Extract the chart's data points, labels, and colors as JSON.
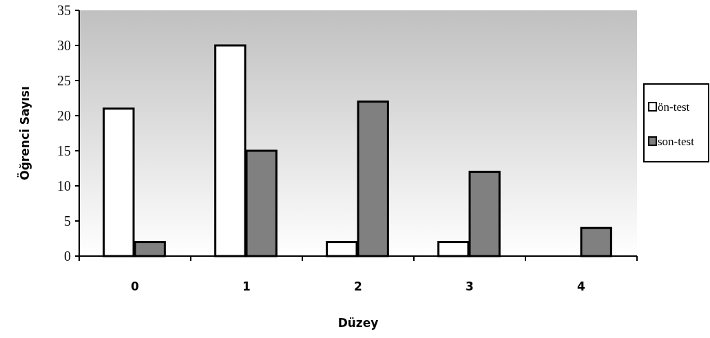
{
  "chart_data": {
    "type": "bar",
    "xlabel": "Düzey",
    "ylabel": "Öğrenci Sayısı",
    "categories": [
      "0",
      "1",
      "2",
      "3",
      "4"
    ],
    "series": [
      {
        "name": "ön-test",
        "color": "#ffffff",
        "values": [
          21,
          30,
          2,
          2,
          null
        ]
      },
      {
        "name": "son-test",
        "color": "#808080",
        "values": [
          2,
          15,
          22,
          12,
          4
        ]
      }
    ],
    "ylim": [
      0,
      35
    ],
    "yticks": [
      0,
      5,
      10,
      15,
      20,
      25,
      30,
      35
    ],
    "grid": false,
    "legend": "right"
  }
}
